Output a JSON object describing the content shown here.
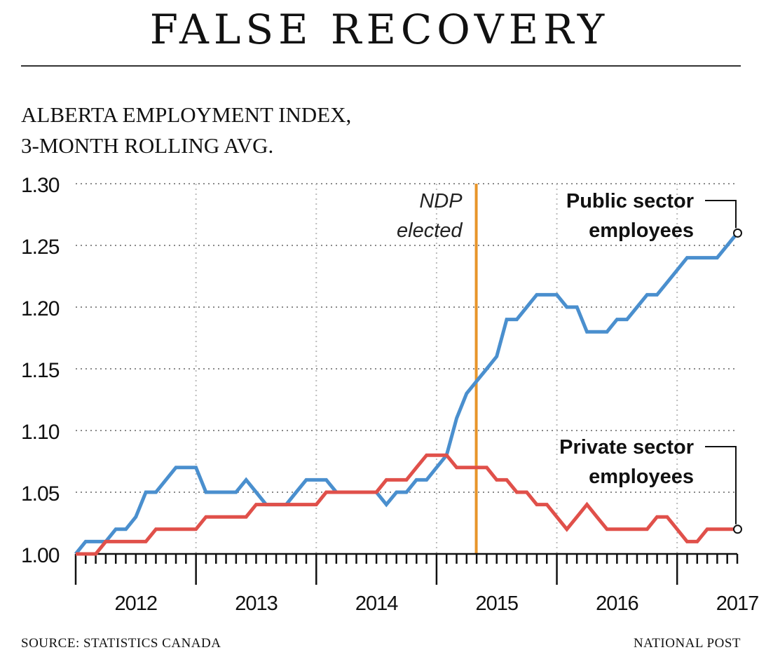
{
  "title": "FALSE RECOVERY",
  "subtitle": {
    "line1": "ALBERTA EMPLOYMENT INDEX,",
    "line2": "3-MONTH ROLLING AVG."
  },
  "source": "SOURCE: STATISTICS CANADA",
  "credit": "NATIONAL POST",
  "chart_data": {
    "type": "line",
    "title": "ALBERTA EMPLOYMENT INDEX, 3-MONTH ROLLING AVG.",
    "xlabel": "",
    "ylabel": "",
    "ylim": [
      1.0,
      1.3
    ],
    "xlim": [
      2012.0,
      2017.5
    ],
    "yticks": [
      "1.00",
      "1.05",
      "1.10",
      "1.15",
      "1.20",
      "1.25",
      "1.30"
    ],
    "xticks": [
      "2012",
      "2013",
      "2014",
      "2015",
      "2016",
      "2017"
    ],
    "grid": "horizontal dotted",
    "annotation": {
      "x": 2015.33,
      "line1": "NDP",
      "line2": "elected",
      "color": "#e8952a"
    },
    "series": [
      {
        "name": "Public sector employees",
        "label_line1": "Public sector",
        "label_line2": "employees",
        "color": "#4a8fce",
        "x": [
          2012.0,
          2012.083,
          2012.167,
          2012.25,
          2012.333,
          2012.417,
          2012.5,
          2012.583,
          2012.667,
          2012.75,
          2012.833,
          2012.917,
          2013.0,
          2013.083,
          2013.167,
          2013.25,
          2013.333,
          2013.417,
          2013.5,
          2013.583,
          2013.667,
          2013.75,
          2013.833,
          2013.917,
          2014.0,
          2014.083,
          2014.167,
          2014.25,
          2014.333,
          2014.417,
          2014.5,
          2014.583,
          2014.667,
          2014.75,
          2014.833,
          2014.917,
          2015.0,
          2015.083,
          2015.167,
          2015.25,
          2015.333,
          2015.417,
          2015.5,
          2015.583,
          2015.667,
          2015.75,
          2015.833,
          2015.917,
          2016.0,
          2016.083,
          2016.167,
          2016.25,
          2016.333,
          2016.417,
          2016.5,
          2016.583,
          2016.667,
          2016.75,
          2016.833,
          2016.917,
          2017.0,
          2017.083,
          2017.167,
          2017.25,
          2017.333,
          2017.5
        ],
        "values": [
          1.0,
          1.01,
          1.01,
          1.01,
          1.02,
          1.02,
          1.03,
          1.05,
          1.05,
          1.06,
          1.07,
          1.07,
          1.07,
          1.05,
          1.05,
          1.05,
          1.05,
          1.06,
          1.05,
          1.04,
          1.04,
          1.04,
          1.05,
          1.06,
          1.06,
          1.06,
          1.05,
          1.05,
          1.05,
          1.05,
          1.05,
          1.04,
          1.05,
          1.05,
          1.06,
          1.06,
          1.07,
          1.08,
          1.11,
          1.13,
          1.14,
          1.15,
          1.16,
          1.19,
          1.19,
          1.2,
          1.21,
          1.21,
          1.21,
          1.2,
          1.2,
          1.18,
          1.18,
          1.18,
          1.19,
          1.19,
          1.2,
          1.21,
          1.21,
          1.22,
          1.23,
          1.24,
          1.24,
          1.24,
          1.24,
          1.26
        ]
      },
      {
        "name": "Private sector employees",
        "label_line1": "Private sector",
        "label_line2": "employees",
        "color": "#e0504a",
        "x": [
          2012.0,
          2012.083,
          2012.167,
          2012.25,
          2012.333,
          2012.417,
          2012.5,
          2012.583,
          2012.667,
          2012.75,
          2012.833,
          2012.917,
          2013.0,
          2013.083,
          2013.167,
          2013.25,
          2013.333,
          2013.417,
          2013.5,
          2013.583,
          2013.667,
          2013.75,
          2013.833,
          2013.917,
          2014.0,
          2014.083,
          2014.167,
          2014.25,
          2014.333,
          2014.417,
          2014.5,
          2014.583,
          2014.667,
          2014.75,
          2014.833,
          2014.917,
          2015.0,
          2015.083,
          2015.167,
          2015.25,
          2015.333,
          2015.417,
          2015.5,
          2015.583,
          2015.667,
          2015.75,
          2015.833,
          2015.917,
          2016.0,
          2016.083,
          2016.167,
          2016.25,
          2016.333,
          2016.417,
          2016.5,
          2016.583,
          2016.667,
          2016.75,
          2016.833,
          2016.917,
          2017.0,
          2017.083,
          2017.167,
          2017.25,
          2017.333,
          2017.5
        ],
        "values": [
          1.0,
          1.0,
          1.0,
          1.01,
          1.01,
          1.01,
          1.01,
          1.01,
          1.02,
          1.02,
          1.02,
          1.02,
          1.02,
          1.03,
          1.03,
          1.03,
          1.03,
          1.03,
          1.04,
          1.04,
          1.04,
          1.04,
          1.04,
          1.04,
          1.04,
          1.05,
          1.05,
          1.05,
          1.05,
          1.05,
          1.05,
          1.06,
          1.06,
          1.06,
          1.07,
          1.08,
          1.08,
          1.08,
          1.07,
          1.07,
          1.07,
          1.07,
          1.06,
          1.06,
          1.05,
          1.05,
          1.04,
          1.04,
          1.03,
          1.02,
          1.03,
          1.04,
          1.03,
          1.02,
          1.02,
          1.02,
          1.02,
          1.02,
          1.03,
          1.03,
          1.02,
          1.01,
          1.01,
          1.02,
          1.02,
          1.02
        ]
      }
    ]
  }
}
